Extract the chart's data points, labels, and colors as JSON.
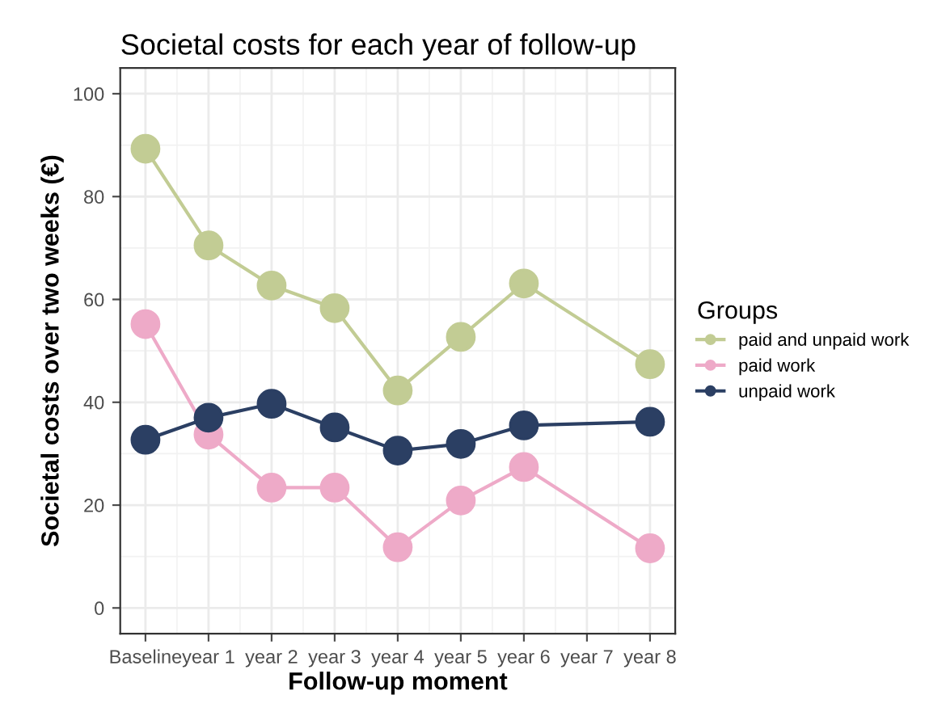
{
  "chart_data": {
    "type": "line",
    "title": "Societal costs for each year of follow-up",
    "xlabel": "Follow-up moment",
    "ylabel": "Societal costs over two weeks (€)",
    "legend_title": "Groups",
    "categories": [
      "Baseline",
      "year 1",
      "year 2",
      "year 3",
      "year 4",
      "year 5",
      "year 6",
      "year 7",
      "year 8"
    ],
    "series": [
      {
        "name": "paid and unpaid work",
        "color": "#c2cc94",
        "values": [
          89.3,
          70.5,
          62.7,
          58.3,
          42.3,
          52.7,
          63.1,
          null,
          47.4
        ]
      },
      {
        "name": "paid work",
        "color": "#eeaac8",
        "values": [
          55.2,
          33.7,
          23.4,
          23.4,
          11.8,
          20.9,
          27.4,
          null,
          11.6
        ]
      },
      {
        "name": "unpaid work",
        "color": "#2b3f63",
        "values": [
          32.7,
          37.0,
          39.7,
          35.1,
          30.6,
          31.9,
          35.5,
          null,
          36.2
        ]
      }
    ],
    "ylim": [
      -5,
      105
    ],
    "yticks": [
      0,
      20,
      40,
      60,
      80,
      100
    ],
    "grid": true,
    "legend": "right",
    "marker": "circle",
    "line_style": "solid"
  }
}
